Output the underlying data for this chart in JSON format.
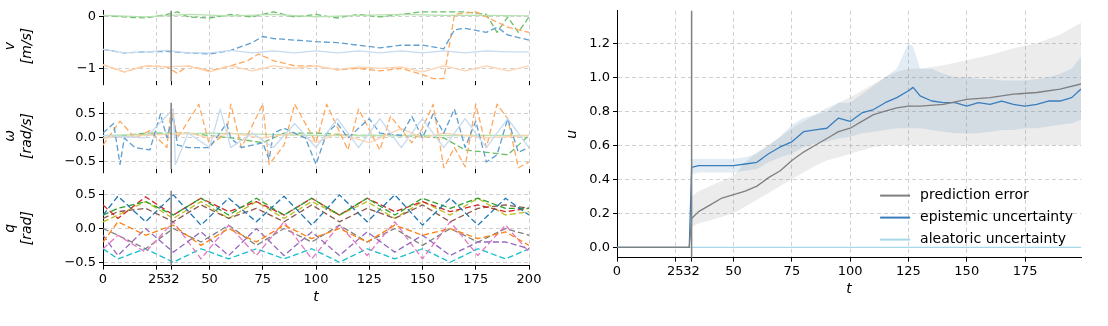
{
  "chart_data": [
    {
      "type": "line",
      "ylabel": "v [m/s]",
      "xlim": [
        0,
        200
      ],
      "ylim": [
        -1.25,
        0.12
      ],
      "xticks": [
        0,
        25,
        32,
        50,
        75,
        100,
        125,
        150,
        175,
        200
      ],
      "yticks": [
        {
          "value": -1,
          "label": "−1"
        },
        0
      ],
      "tick_labels": "y",
      "grid": true,
      "ref_lines": [
        {
          "axis": "x",
          "value": 32,
          "color": "#808080"
        }
      ],
      "series": [
        {
          "color": "#c6dbef",
          "line_style": "solid",
          "x": [
            0,
            10,
            20,
            30,
            40,
            50,
            60,
            70,
            80,
            90,
            100,
            110,
            120,
            130,
            140,
            150,
            160,
            170,
            180,
            190,
            200
          ],
          "values": [
            -0.63,
            -0.7,
            -0.68,
            -0.65,
            -0.7,
            -0.7,
            -0.65,
            -0.7,
            -0.66,
            -0.7,
            -0.66,
            -0.7,
            -0.66,
            -0.7,
            -0.66,
            -0.7,
            -0.66,
            -0.7,
            -0.66,
            -0.68,
            -0.68
          ]
        },
        {
          "color": "#5f9ed1",
          "line_style": "dashed",
          "x": [
            0,
            10,
            20,
            30,
            40,
            50,
            60,
            70,
            75,
            80,
            90,
            100,
            110,
            120,
            130,
            140,
            150,
            160,
            165,
            170,
            180,
            185,
            190,
            200
          ],
          "values": [
            -0.63,
            -0.7,
            -0.68,
            -0.67,
            -0.7,
            -0.72,
            -0.65,
            -0.5,
            -0.38,
            -0.42,
            -0.45,
            -0.48,
            -0.5,
            -0.55,
            -0.6,
            -0.55,
            -0.55,
            -0.62,
            -0.25,
            -0.22,
            -0.3,
            -0.2,
            -0.35,
            -0.45
          ]
        },
        {
          "color": "#ffd3b0",
          "line_style": "solid",
          "x": [
            0,
            10,
            20,
            30,
            40,
            50,
            60,
            70,
            80,
            90,
            100,
            110,
            120,
            130,
            140,
            150,
            160,
            170,
            180,
            190,
            200
          ],
          "values": [
            -0.93,
            -1.07,
            -0.95,
            -0.97,
            -0.95,
            -1.07,
            -0.95,
            -1.05,
            -0.95,
            -1.0,
            -0.95,
            -1.03,
            -0.97,
            -1.0,
            -0.97,
            -1.07,
            -0.95,
            -1.05,
            -0.95,
            -1.05,
            -0.95
          ]
        },
        {
          "color": "#ffa85e",
          "line_style": "dashed",
          "x": [
            0,
            10,
            20,
            30,
            35,
            40,
            50,
            60,
            68,
            73,
            80,
            90,
            100,
            110,
            120,
            130,
            140,
            150,
            155,
            160,
            165,
            175,
            180,
            190,
            200
          ],
          "values": [
            -0.93,
            -1.07,
            -0.95,
            -0.97,
            -1.1,
            -0.95,
            -1.05,
            -0.95,
            -0.85,
            -0.72,
            -0.85,
            -0.95,
            -0.95,
            -1.03,
            -1.0,
            -1.05,
            -1.0,
            -1.12,
            -1.2,
            -1.2,
            0.05,
            0.1,
            0.0,
            -0.2,
            -0.3
          ]
        },
        {
          "color": "#b7e1b0",
          "line_style": "solid",
          "x": [
            0,
            20,
            40,
            60,
            80,
            100,
            120,
            140,
            160,
            180,
            200
          ],
          "values": [
            0.03,
            0.0,
            0.05,
            0.02,
            0.05,
            0.0,
            0.03,
            0.05,
            0.03,
            0.03,
            0.02
          ]
        },
        {
          "color": "#6abf69",
          "line_style": "dashed",
          "x": [
            0,
            10,
            20,
            30,
            35,
            40,
            50,
            60,
            70,
            80,
            90,
            100,
            110,
            120,
            130,
            140,
            150,
            160,
            170,
            180,
            185,
            190,
            195,
            200
          ],
          "values": [
            0.03,
            0.0,
            -0.02,
            0.05,
            0.1,
            0.0,
            -0.02,
            0.05,
            0.0,
            0.1,
            0.0,
            0.05,
            -0.02,
            0.05,
            0.0,
            0.05,
            0.1,
            0.1,
            0.1,
            0.05,
            -0.3,
            0.0,
            -0.3,
            0.0
          ]
        }
      ]
    },
    {
      "type": "line",
      "ylabel": "ω [rad/s]",
      "xlim": [
        0,
        200
      ],
      "ylim": [
        -0.65,
        0.73
      ],
      "xticks": [
        0,
        25,
        32,
        50,
        75,
        100,
        125,
        150,
        175,
        200
      ],
      "yticks": [
        {
          "value": -0.5,
          "label": "−0.5"
        },
        {
          "value": 0,
          "label": "0.0"
        },
        0.5
      ],
      "tick_labels": "y",
      "grid": true,
      "ref_lines": [
        {
          "axis": "x",
          "value": 32,
          "color": "#808080"
        }
      ],
      "series": [
        {
          "color": "#c6dbef",
          "line_style": "solid",
          "x": [
            0,
            20,
            33,
            34,
            40,
            50,
            55,
            60,
            70,
            80,
            90,
            100,
            110,
            120,
            130,
            140,
            150,
            160,
            170,
            180,
            190,
            200
          ],
          "values": [
            0.05,
            0.0,
            0.6,
            -0.55,
            0.1,
            -0.2,
            0.6,
            -0.2,
            0.1,
            -0.2,
            0.3,
            -0.2,
            0.4,
            -0.2,
            0.4,
            -0.2,
            0.4,
            -0.2,
            0.4,
            -0.2,
            0.4,
            -0.2
          ]
        },
        {
          "color": "#5f9ed1",
          "line_style": "dashed",
          "x": [
            0,
            5,
            8,
            10,
            15,
            22,
            27,
            30,
            33,
            35,
            40,
            50,
            58,
            60,
            65,
            75,
            78,
            80,
            85,
            95,
            100,
            105,
            110,
            115,
            125,
            130,
            140,
            145,
            150,
            155,
            160,
            165,
            170,
            175,
            180,
            185,
            190,
            195,
            200
          ],
          "values": [
            0.1,
            0.3,
            -0.55,
            0.0,
            -0.2,
            -0.25,
            0.5,
            0.0,
            0.45,
            -0.15,
            -0.2,
            -0.2,
            0.3,
            0.0,
            -0.2,
            -0.1,
            -0.45,
            0.1,
            0.2,
            0.0,
            -0.55,
            0.1,
            0.3,
            0.0,
            0.4,
            0.1,
            0.05,
            0.45,
            0.0,
            0.5,
            0.1,
            0.6,
            -0.2,
            0.35,
            -0.5,
            -0.35,
            0.4,
            -0.3,
            -0.2
          ]
        },
        {
          "color": "#ffd3b0",
          "line_style": "solid",
          "x": [
            0,
            40,
            50,
            60,
            75,
            90,
            100,
            110,
            125,
            140,
            150,
            160,
            180,
            200
          ],
          "values": [
            0.0,
            0.1,
            0.0,
            0.1,
            0.0,
            0.1,
            -0.1,
            0.1,
            -0.1,
            0.2,
            0.0,
            0.1,
            0.0,
            0.05
          ]
        },
        {
          "color": "#ffa85e",
          "line_style": "dashed",
          "x": [
            0,
            8,
            15,
            22,
            30,
            32,
            35,
            45,
            50,
            58,
            60,
            65,
            75,
            78,
            85,
            90,
            100,
            105,
            115,
            120,
            130,
            135,
            145,
            150,
            155,
            160,
            165,
            170,
            175,
            180,
            185,
            190,
            195,
            200
          ],
          "values": [
            -0.15,
            0.35,
            0.0,
            0.15,
            -0.2,
            0.6,
            0.0,
            0.7,
            -0.15,
            0.1,
            0.7,
            -0.2,
            0.7,
            -0.55,
            -0.15,
            0.7,
            -0.1,
            0.7,
            -0.25,
            0.6,
            -0.25,
            0.45,
            -0.1,
            0.2,
            0.7,
            -0.62,
            -0.2,
            -0.6,
            0.7,
            -0.2,
            0.7,
            0.4,
            -0.62,
            -0.5
          ]
        },
        {
          "color": "#b7e1b0",
          "line_style": "solid",
          "x": [
            0,
            50,
            100,
            150,
            200
          ],
          "values": [
            0.05,
            0.1,
            0.05,
            0.05,
            0.05
          ]
        },
        {
          "color": "#6abf69",
          "line_style": "dashed",
          "x": [
            0,
            20,
            40,
            50,
            60,
            75,
            85,
            100,
            120,
            140,
            160,
            170,
            180,
            190,
            200
          ],
          "values": [
            0.0,
            0.1,
            0.1,
            0.05,
            0.0,
            -0.1,
            0.1,
            0.1,
            0.05,
            0.05,
            0.0,
            -0.25,
            -0.3,
            -0.35,
            0.05
          ]
        }
      ]
    },
    {
      "type": "line",
      "ylabel": "q [rad]",
      "xlabel": "t",
      "xlim": [
        0,
        200
      ],
      "ylim": [
        -0.55,
        0.56
      ],
      "xticks": [
        0,
        25,
        32,
        50,
        75,
        100,
        125,
        150,
        175,
        200
      ],
      "yticks": [
        {
          "value": -0.5,
          "label": "−0.5"
        },
        {
          "value": 0,
          "label": "0.0"
        },
        0.5
      ],
      "grid": true,
      "line_style": "dashed",
      "x": [
        0,
        7,
        20,
        33,
        46,
        59,
        72,
        85,
        98,
        111,
        124,
        137,
        150,
        163,
        176,
        189,
        200
      ],
      "ref_lines": [
        {
          "axis": "x",
          "value": 32,
          "color": "#808080"
        }
      ],
      "series": [
        {
          "color": "#1f77b4",
          "values": [
            0.2,
            0.48,
            0.1,
            0.5,
            0.05,
            0.45,
            0.1,
            0.48,
            0.05,
            0.5,
            0.1,
            0.5,
            0.05,
            0.45,
            0.05,
            0.45,
            0.2
          ]
        },
        {
          "color": "#ff7f0e",
          "values": [
            -0.2,
            0.1,
            -0.1,
            0.05,
            -0.25,
            0.0,
            -0.2,
            0.05,
            -0.15,
            0.0,
            -0.2,
            0.05,
            -0.1,
            0.0,
            -0.15,
            -0.05,
            -0.25
          ]
        },
        {
          "color": "#2ca02c",
          "values": [
            0.2,
            0.3,
            0.4,
            0.2,
            0.45,
            0.2,
            0.45,
            0.2,
            0.45,
            0.2,
            0.45,
            0.2,
            0.45,
            0.3,
            0.45,
            0.3,
            0.3
          ]
        },
        {
          "color": "#d62728",
          "values": [
            0.35,
            0.15,
            0.47,
            0.2,
            0.45,
            0.25,
            0.4,
            0.2,
            0.45,
            0.2,
            0.45,
            0.25,
            0.4,
            0.25,
            0.35,
            0.25,
            0.3
          ]
        },
        {
          "color": "#9467bd",
          "values": [
            -0.1,
            -0.4,
            0.0,
            -0.35,
            -0.05,
            -0.4,
            0.0,
            -0.4,
            -0.05,
            -0.4,
            -0.05,
            -0.35,
            -0.1,
            -0.4,
            -0.2,
            -0.2,
            -0.3
          ]
        },
        {
          "color": "#8c564b",
          "values": [
            0.15,
            0.25,
            0.3,
            0.1,
            0.35,
            0.15,
            0.3,
            0.1,
            0.35,
            0.1,
            0.3,
            0.15,
            0.35,
            0.1,
            0.3,
            0.35,
            0.3
          ]
        },
        {
          "color": "#e377c2",
          "values": [
            -0.3,
            -0.1,
            -0.35,
            0.1,
            -0.45,
            0.05,
            -0.4,
            0.1,
            -0.45,
            0.05,
            -0.4,
            0.1,
            -0.45,
            0.1,
            -0.4,
            0.05,
            -0.35
          ]
        },
        {
          "color": "#7f7f7f",
          "values": [
            0.0,
            -0.1,
            -0.3,
            0.0,
            -0.2,
            0.05,
            -0.25,
            0.0,
            -0.2,
            0.05,
            -0.2,
            0.0,
            -0.25,
            0.0,
            -0.2,
            0.0,
            -0.1
          ]
        },
        {
          "color": "#bcbd22",
          "values": [
            0.1,
            0.2,
            0.4,
            0.15,
            0.4,
            0.15,
            0.4,
            0.15,
            0.4,
            0.2,
            0.4,
            0.15,
            0.4,
            0.2,
            0.45,
            0.2,
            0.25
          ]
        },
        {
          "color": "#17becf",
          "values": [
            -0.3,
            -0.45,
            -0.3,
            -0.5,
            -0.3,
            -0.45,
            -0.3,
            -0.45,
            -0.3,
            -0.5,
            -0.3,
            -0.45,
            -0.3,
            -0.5,
            -0.3,
            -0.45,
            -0.3
          ]
        }
      ]
    },
    {
      "type": "line",
      "ylabel": "u",
      "xlabel": "t",
      "xlim": [
        0,
        199
      ],
      "ylim": [
        -0.06,
        1.39
      ],
      "xticks": [
        0,
        25,
        32,
        50,
        75,
        100,
        125,
        150,
        175
      ],
      "yticks": [
        {
          "value": 0,
          "label": "0.0"
        },
        0.2,
        0.4,
        0.6,
        0.8,
        {
          "value": 1,
          "label": "1.0"
        },
        1.2
      ],
      "grid": true,
      "legend": "bottom right",
      "ref_lines": [
        {
          "axis": "x",
          "value": 32,
          "color": "#808080"
        }
      ],
      "series": [
        {
          "name": "prediction error",
          "color": "#7f7f7f",
          "x": [
            0,
            31,
            32,
            35,
            40,
            45,
            50,
            55,
            60,
            65,
            70,
            75,
            80,
            85,
            90,
            95,
            100,
            105,
            110,
            115,
            120,
            125,
            130,
            140,
            150,
            160,
            170,
            180,
            190,
            199
          ],
          "values": [
            0,
            0,
            0.17,
            0.21,
            0.25,
            0.29,
            0.31,
            0.33,
            0.36,
            0.41,
            0.45,
            0.51,
            0.56,
            0.6,
            0.64,
            0.68,
            0.7,
            0.74,
            0.78,
            0.8,
            0.82,
            0.83,
            0.83,
            0.84,
            0.87,
            0.88,
            0.9,
            0.91,
            0.93,
            0.96
          ],
          "lower": [
            0,
            0,
            0.12,
            0.14,
            0.16,
            0.18,
            0.2,
            0.24,
            0.28,
            0.32,
            0.36,
            0.4,
            0.44,
            0.48,
            0.51,
            0.53,
            0.55,
            0.57,
            0.59,
            0.6,
            0.6,
            0.6,
            0.6,
            0.6,
            0.6,
            0.6,
            0.6,
            0.6,
            0.6,
            0.6
          ],
          "upper": [
            0,
            0,
            0.3,
            0.33,
            0.36,
            0.39,
            0.42,
            0.5,
            0.56,
            0.6,
            0.65,
            0.7,
            0.74,
            0.78,
            0.82,
            0.85,
            0.88,
            0.92,
            0.96,
            1.0,
            1.03,
            1.05,
            1.05,
            1.07,
            1.1,
            1.13,
            1.17,
            1.2,
            1.25,
            1.32
          ]
        },
        {
          "name": "epistemic uncertainty",
          "color": "#3a7dbd",
          "x": [
            0,
            31,
            32,
            35,
            40,
            50,
            55,
            60,
            65,
            70,
            75,
            80,
            85,
            90,
            95,
            100,
            105,
            110,
            115,
            120,
            125,
            127,
            130,
            135,
            140,
            145,
            150,
            155,
            160,
            165,
            170,
            175,
            180,
            185,
            190,
            195,
            199
          ],
          "values": [
            0,
            0,
            0.47,
            0.48,
            0.48,
            0.48,
            0.49,
            0.5,
            0.55,
            0.59,
            0.62,
            0.68,
            0.69,
            0.7,
            0.76,
            0.74,
            0.79,
            0.81,
            0.85,
            0.88,
            0.92,
            0.94,
            0.89,
            0.86,
            0.85,
            0.85,
            0.83,
            0.85,
            0.84,
            0.86,
            0.84,
            0.83,
            0.84,
            0.86,
            0.86,
            0.88,
            0.93
          ],
          "lower": [
            0,
            0,
            0.43,
            0.44,
            0.44,
            0.44,
            0.45,
            0.46,
            0.5,
            0.53,
            0.55,
            0.59,
            0.61,
            0.62,
            0.64,
            0.65,
            0.67,
            0.68,
            0.69,
            0.7,
            0.7,
            0.7,
            0.7,
            0.69,
            0.68,
            0.67,
            0.67,
            0.67,
            0.68,
            0.69,
            0.69,
            0.7,
            0.7,
            0.71,
            0.72,
            0.73,
            0.75
          ],
          "upper": [
            0,
            0,
            0.52,
            0.52,
            0.52,
            0.52,
            0.53,
            0.55,
            0.6,
            0.65,
            0.72,
            0.76,
            0.78,
            0.8,
            0.85,
            0.85,
            0.9,
            0.95,
            1.0,
            1.05,
            1.2,
            1.18,
            1.05,
            1.05,
            1.02,
            1.0,
            1.0,
            0.99,
            0.99,
            0.98,
            0.98,
            0.98,
            0.99,
            1.0,
            1.02,
            1.05,
            1.12
          ]
        },
        {
          "name": "aleatoric uncertainty",
          "color": "#a6d8e8",
          "x": [
            0,
            199
          ],
          "values": [
            0,
            0
          ]
        }
      ]
    }
  ]
}
